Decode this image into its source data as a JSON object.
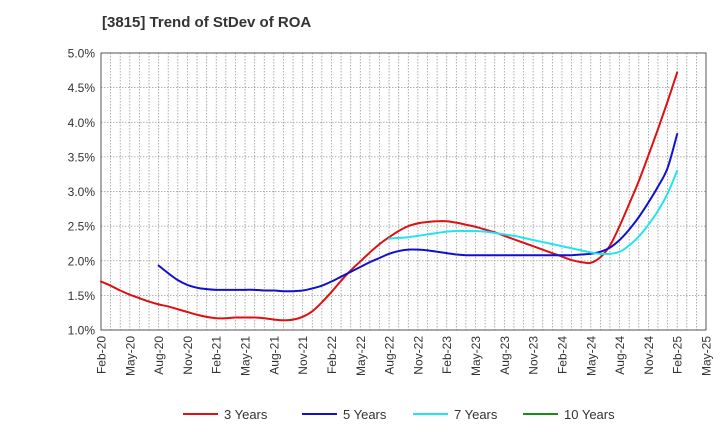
{
  "chart_data": {
    "type": "line",
    "title": "[3815]  Trend of StDev of ROA",
    "x_ticks": [
      "Feb-20",
      "May-20",
      "Aug-20",
      "Nov-20",
      "Feb-21",
      "May-21",
      "Aug-21",
      "Nov-21",
      "Feb-22",
      "May-22",
      "Aug-22",
      "Nov-22",
      "Feb-23",
      "May-23",
      "Aug-23",
      "Nov-23",
      "Feb-24",
      "May-24",
      "Aug-24",
      "Nov-24",
      "Feb-25",
      "May-25"
    ],
    "y_ticks": [
      "1.0%",
      "1.5%",
      "2.0%",
      "2.5%",
      "3.0%",
      "3.5%",
      "4.0%",
      "4.5%",
      "5.0%"
    ],
    "ylim": [
      1.0,
      5.0
    ],
    "y_unit": "%",
    "grid": true,
    "legend_position": "bottom",
    "series": [
      {
        "name": "3 Years",
        "color": "#dd1111",
        "x": [
          "Feb-20",
          "Mar-20",
          "Apr-20",
          "May-20",
          "Jun-20",
          "Jul-20",
          "Aug-20",
          "Sep-20",
          "Oct-20",
          "Nov-20",
          "Dec-20",
          "Jan-21",
          "Feb-21",
          "Mar-21",
          "Apr-21",
          "May-21",
          "Jun-21",
          "Jul-21",
          "Aug-21",
          "Sep-21",
          "Oct-21",
          "Nov-21",
          "Dec-21",
          "Jan-22",
          "Feb-22",
          "Mar-22",
          "Apr-22",
          "May-22",
          "Jun-22",
          "Jul-22",
          "Aug-22",
          "Sep-22",
          "Oct-22",
          "Nov-22",
          "Dec-22",
          "Jan-23",
          "Feb-23",
          "Mar-23",
          "Apr-23",
          "May-23",
          "Jun-23",
          "Jul-23",
          "Aug-23",
          "Sep-23",
          "Oct-23",
          "Nov-23",
          "Dec-23",
          "Jan-24",
          "Feb-24",
          "Mar-24",
          "Apr-24",
          "May-24",
          "Jun-24",
          "Jul-24",
          "Aug-24",
          "Sep-24",
          "Oct-24",
          "Nov-24",
          "Dec-24",
          "Jan-25",
          "Feb-25"
        ],
        "values": [
          1.7,
          1.64,
          1.57,
          1.51,
          1.46,
          1.41,
          1.37,
          1.34,
          1.3,
          1.26,
          1.22,
          1.19,
          1.17,
          1.17,
          1.18,
          1.18,
          1.18,
          1.17,
          1.15,
          1.14,
          1.15,
          1.19,
          1.27,
          1.4,
          1.55,
          1.71,
          1.86,
          1.99,
          2.12,
          2.24,
          2.34,
          2.43,
          2.5,
          2.54,
          2.56,
          2.57,
          2.57,
          2.55,
          2.52,
          2.49,
          2.45,
          2.41,
          2.36,
          2.31,
          2.26,
          2.21,
          2.16,
          2.11,
          2.06,
          2.01,
          1.98,
          1.97,
          2.05,
          2.22,
          2.5,
          2.82,
          3.15,
          3.52,
          3.9,
          4.3,
          4.72
        ]
      },
      {
        "name": "5 Years",
        "color": "#1111cc",
        "x": [
          "Aug-20",
          "Sep-20",
          "Oct-20",
          "Nov-20",
          "Dec-20",
          "Jan-21",
          "Feb-21",
          "Mar-21",
          "Apr-21",
          "May-21",
          "Jun-21",
          "Jul-21",
          "Aug-21",
          "Sep-21",
          "Oct-21",
          "Nov-21",
          "Dec-21",
          "Jan-22",
          "Feb-22",
          "Mar-22",
          "Apr-22",
          "May-22",
          "Jun-22",
          "Jul-22",
          "Aug-22",
          "Sep-22",
          "Oct-22",
          "Nov-22",
          "Dec-22",
          "Jan-23",
          "Feb-23",
          "Mar-23",
          "Apr-23",
          "May-23",
          "Jun-23",
          "Jul-23",
          "Aug-23",
          "Sep-23",
          "Oct-23",
          "Nov-23",
          "Dec-23",
          "Jan-24",
          "Feb-24",
          "Mar-24",
          "Apr-24",
          "May-24",
          "Jun-24",
          "Jul-24",
          "Aug-24",
          "Sep-24",
          "Oct-24",
          "Nov-24",
          "Dec-24",
          "Jan-25",
          "Feb-25"
        ],
        "values": [
          1.93,
          1.82,
          1.72,
          1.65,
          1.61,
          1.59,
          1.58,
          1.58,
          1.58,
          1.58,
          1.58,
          1.57,
          1.57,
          1.56,
          1.56,
          1.57,
          1.6,
          1.64,
          1.7,
          1.77,
          1.84,
          1.91,
          1.98,
          2.04,
          2.1,
          2.14,
          2.16,
          2.16,
          2.15,
          2.13,
          2.11,
          2.09,
          2.08,
          2.08,
          2.08,
          2.08,
          2.08,
          2.08,
          2.08,
          2.08,
          2.08,
          2.08,
          2.08,
          2.08,
          2.09,
          2.1,
          2.13,
          2.19,
          2.3,
          2.45,
          2.63,
          2.84,
          3.07,
          3.34,
          3.83
        ]
      },
      {
        "name": "7 Years",
        "color": "#22e4ee",
        "x": [
          "Aug-22",
          "Sep-22",
          "Oct-22",
          "Nov-22",
          "Dec-22",
          "Jan-23",
          "Feb-23",
          "Mar-23",
          "Apr-23",
          "May-23",
          "Jun-23",
          "Jul-23",
          "Aug-23",
          "Sep-23",
          "Oct-23",
          "Nov-23",
          "Dec-23",
          "Jan-24",
          "Feb-24",
          "Mar-24",
          "Apr-24",
          "May-24",
          "Jun-24",
          "Jul-24",
          "Aug-24",
          "Sep-24",
          "Oct-24",
          "Nov-24",
          "Dec-24",
          "Jan-25",
          "Feb-25"
        ],
        "values": [
          2.32,
          2.33,
          2.34,
          2.36,
          2.38,
          2.4,
          2.42,
          2.43,
          2.43,
          2.43,
          2.42,
          2.4,
          2.38,
          2.36,
          2.33,
          2.3,
          2.27,
          2.24,
          2.21,
          2.18,
          2.15,
          2.12,
          2.1,
          2.1,
          2.13,
          2.22,
          2.35,
          2.52,
          2.72,
          2.97,
          3.3
        ]
      },
      {
        "name": "10 Years",
        "color": "#1a8a1a",
        "x": [],
        "values": []
      }
    ]
  }
}
